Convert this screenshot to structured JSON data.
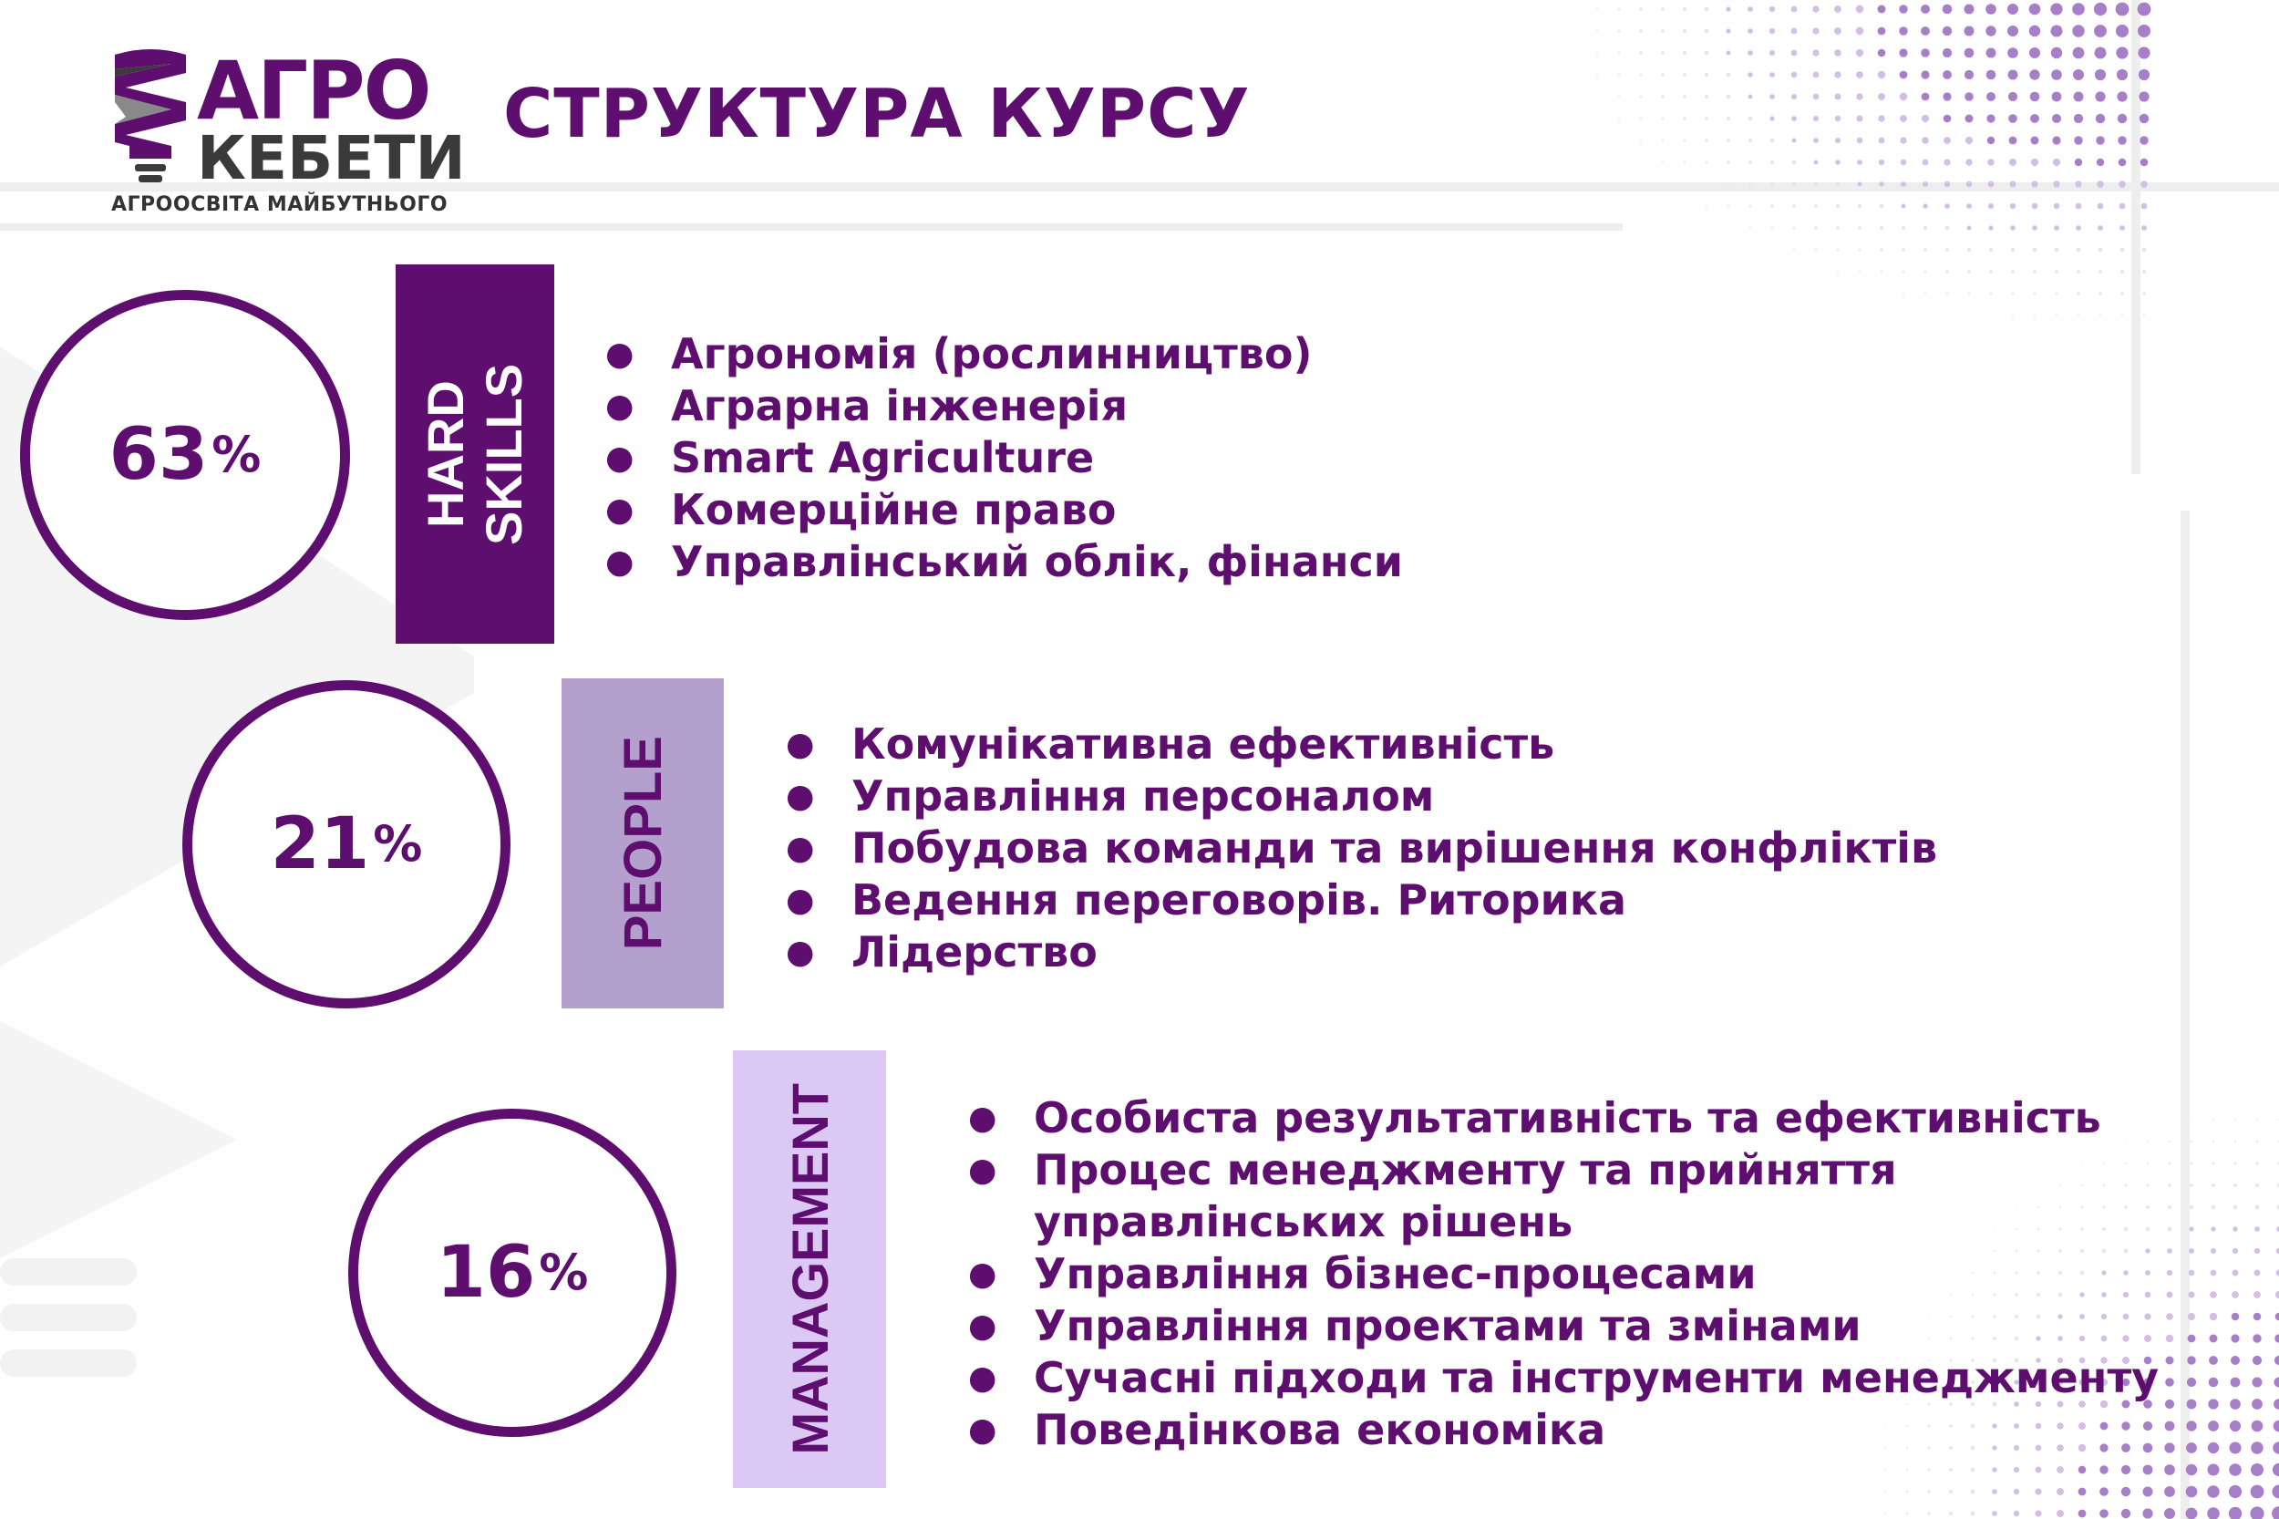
{
  "brand": {
    "line1": "АГРО",
    "line2": "КЕБЕТИ",
    "tagline": "АГРООСВІТА МАЙБУТНЬОГО"
  },
  "title": "СТРУКТУРА КУРСУ",
  "colors": {
    "primary": "#5e0e6e",
    "bar_hard": "#5e0e6e",
    "bar_people": "#b3a0cc",
    "bar_management": "#dcc8f5"
  },
  "sections": [
    {
      "percent_value": "63",
      "percent_sign": "%",
      "label": "HARD SKILLS",
      "items": [
        "Агрономія (рослинництво)",
        "Аграрна інженерія",
        "Smart Agriculture",
        "Комерційне право",
        "Управлінський облік, фінанси"
      ]
    },
    {
      "percent_value": "21",
      "percent_sign": "%",
      "label": "PEOPLE",
      "items": [
        "Комунікативна ефективність",
        "Управління персоналом",
        "Побудова команди та вирішення конфліктів",
        "Ведення переговорів. Риторика",
        "Лідерство"
      ]
    },
    {
      "percent_value": "16",
      "percent_sign": "%",
      "label": "MANAGEMENT",
      "items": [
        "Особиста результативність та ефективність",
        "Процес менеджменту та прийняття\nуправлінських рішень",
        "Управління бізнес-процесами",
        "Управління проектами та змінами",
        "Сучасні підходи та інструменти менеджменту",
        "Поведінкова економіка"
      ]
    }
  ]
}
